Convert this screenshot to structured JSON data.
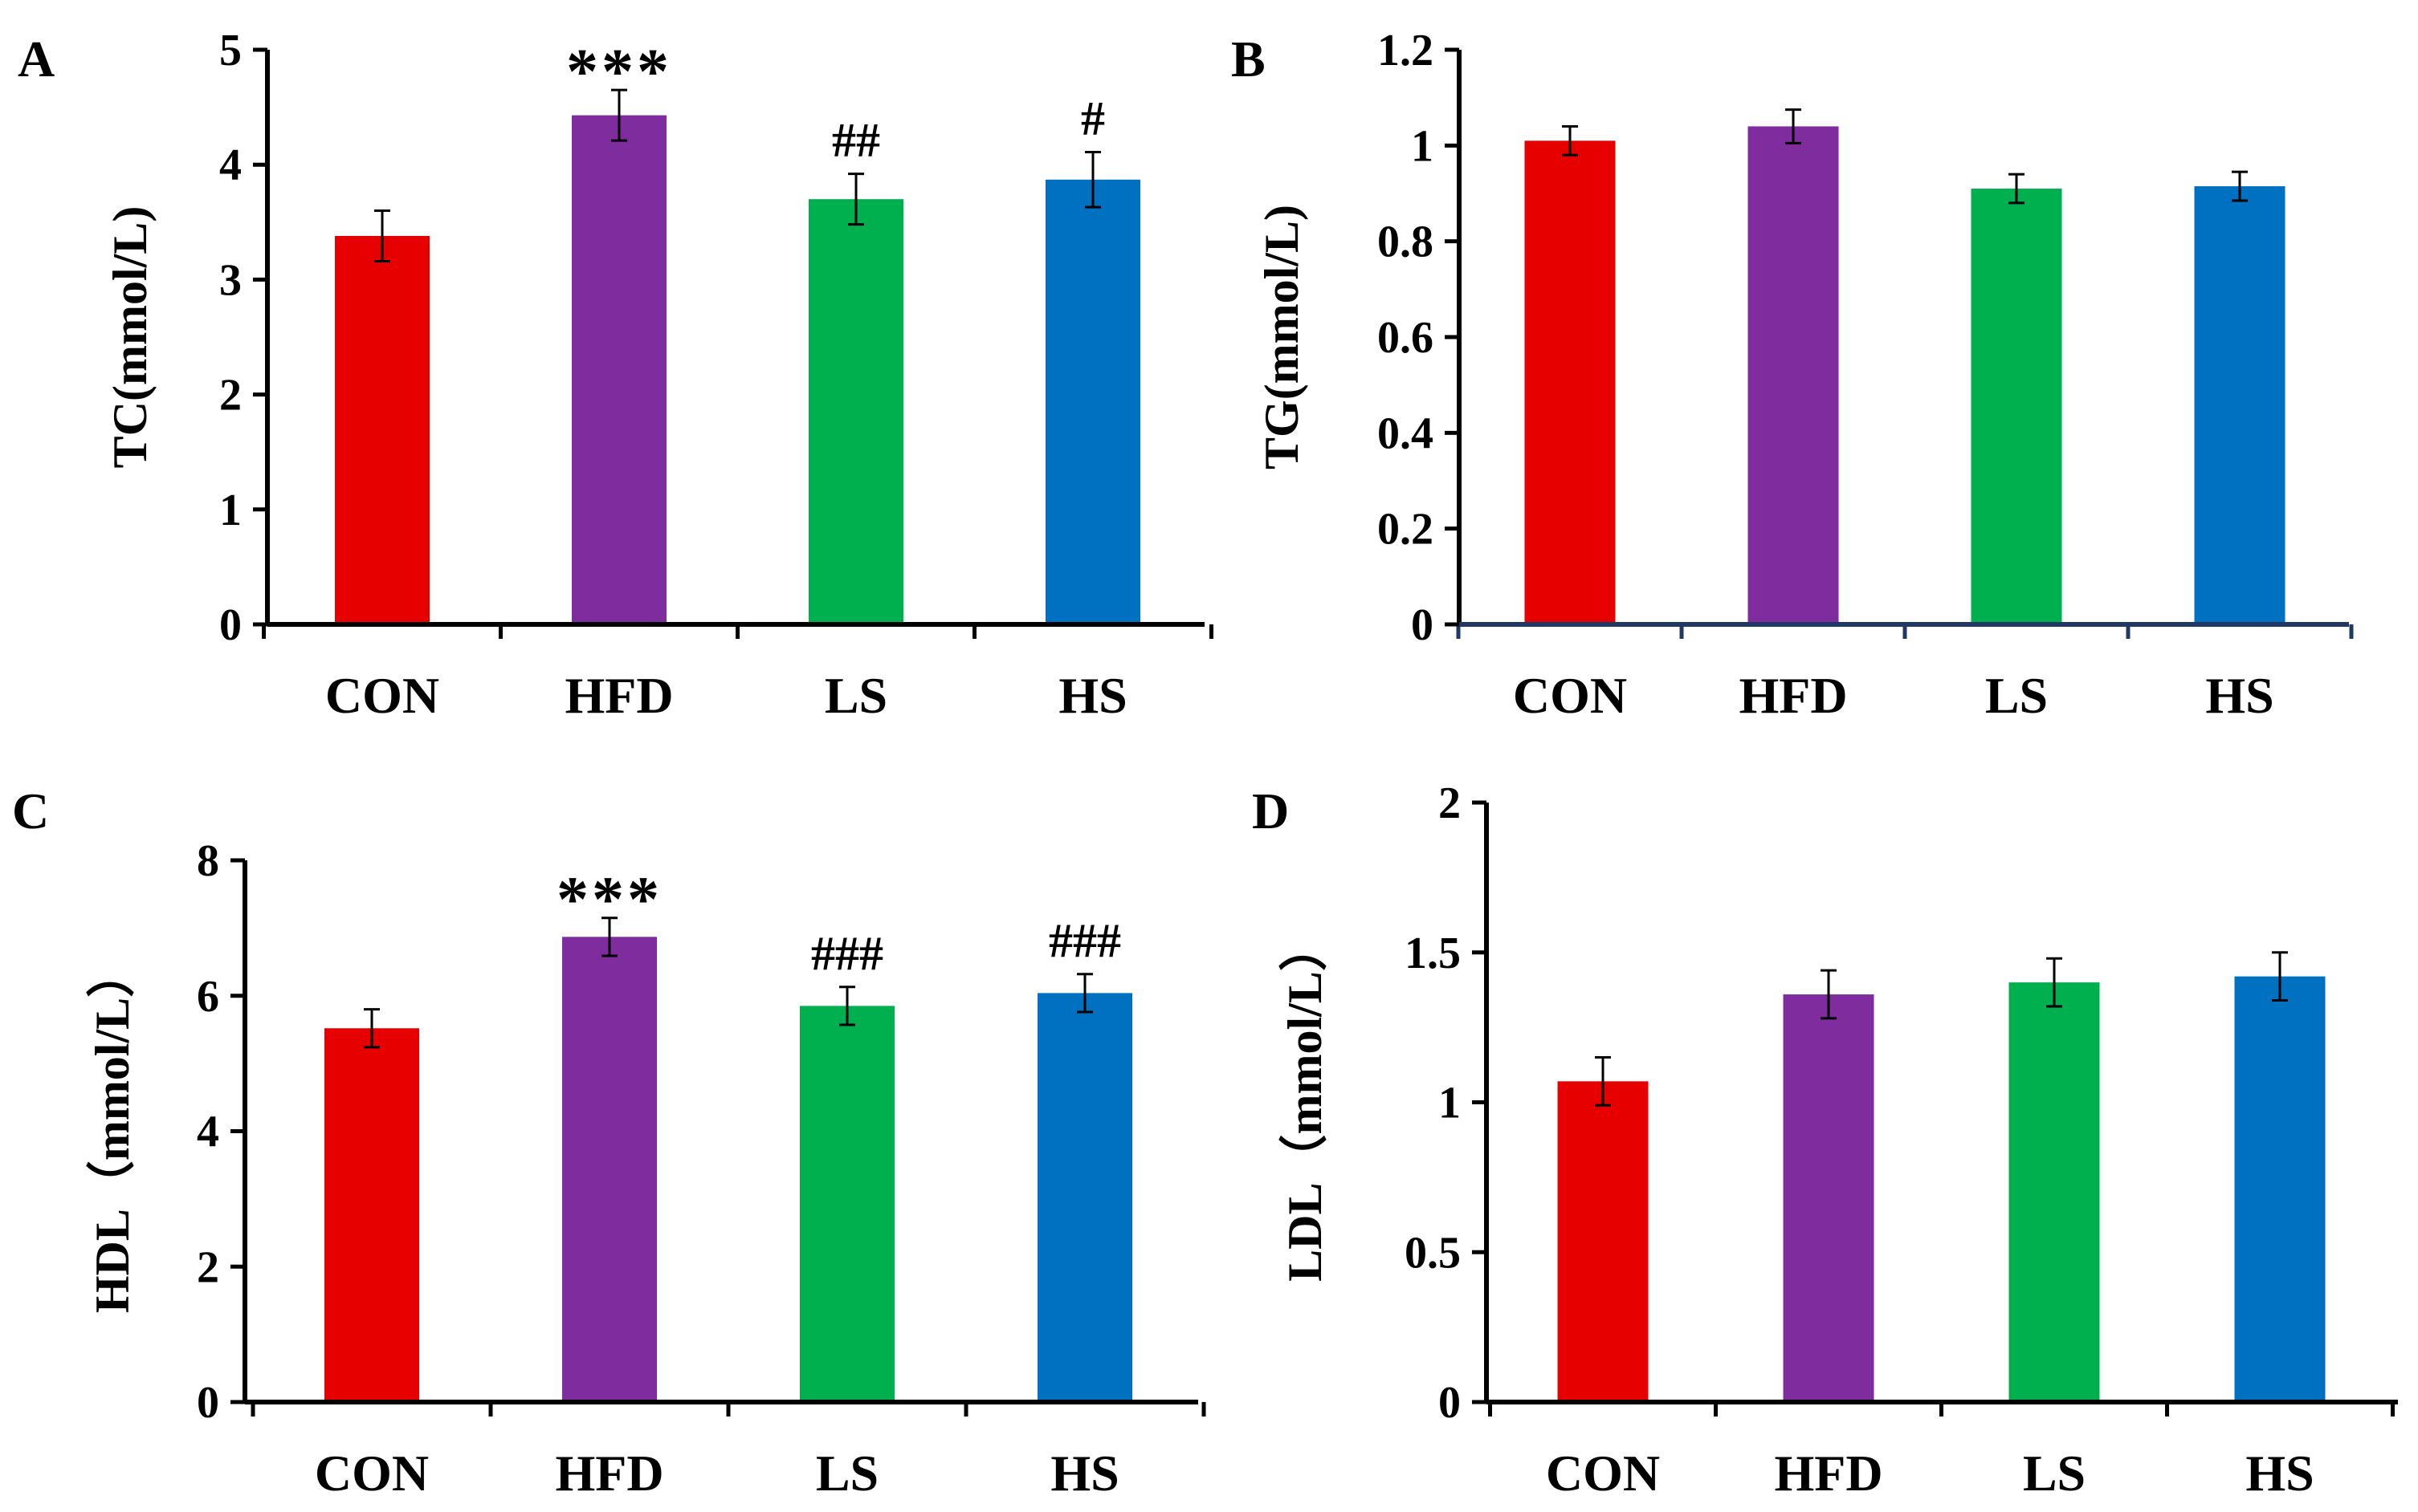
{
  "colors": {
    "CON": "#e60000",
    "HFD": "#7f2d9e",
    "LS": "#00b04f",
    "HS": "#0070c0",
    "axis_default": "#000000",
    "axis_B": "#1f3864"
  },
  "chart_data": [
    {
      "panel": "A",
      "type": "bar",
      "ylabel": "TC(mmol/L)",
      "categories": [
        "CON",
        "HFD",
        "LS",
        "HS"
      ],
      "values": [
        3.38,
        4.43,
        3.7,
        3.87
      ],
      "errors": [
        0.22,
        0.22,
        0.22,
        0.24
      ],
      "annotations": [
        "",
        "***",
        "##",
        "#"
      ],
      "ylim": [
        0,
        5
      ],
      "yticks": [
        0,
        1,
        2,
        3,
        4,
        5
      ],
      "ytick_labels": [
        "0",
        "1",
        "2",
        "3",
        "4",
        "5"
      ]
    },
    {
      "panel": "B",
      "type": "bar",
      "ylabel": "TG(mmol/L)",
      "categories": [
        "CON",
        "HFD",
        "LS",
        "HS"
      ],
      "values": [
        1.01,
        1.04,
        0.91,
        0.915
      ],
      "errors": [
        0.03,
        0.035,
        0.03,
        0.03
      ],
      "annotations": [
        "",
        "",
        "",
        ""
      ],
      "ylim": [
        0,
        1.2
      ],
      "yticks": [
        0,
        0.2,
        0.4,
        0.6,
        0.8,
        1,
        1.2
      ],
      "ytick_labels": [
        "0",
        "0.2",
        "0.4",
        "0.6",
        "0.8",
        "1",
        "1.2"
      ]
    },
    {
      "panel": "C",
      "type": "bar",
      "ylabel": "HDL（mmol/L）",
      "categories": [
        "CON",
        "HFD",
        "LS",
        "HS"
      ],
      "values": [
        5.52,
        6.87,
        5.85,
        6.04
      ],
      "errors": [
        0.28,
        0.28,
        0.28,
        0.28
      ],
      "annotations": [
        "",
        "***",
        "###",
        "###"
      ],
      "ylim": [
        0,
        8
      ],
      "yticks": [
        0,
        2,
        4,
        6,
        8
      ],
      "ytick_labels": [
        "0",
        "2",
        "4",
        "6",
        "8"
      ]
    },
    {
      "panel": "D",
      "type": "bar",
      "ylabel": "LDL（mmol/L）",
      "categories": [
        "CON",
        "HFD",
        "LS",
        "HS"
      ],
      "values": [
        1.07,
        1.36,
        1.4,
        1.42
      ],
      "errors": [
        0.08,
        0.08,
        0.08,
        0.08
      ],
      "annotations": [
        "",
        "",
        "",
        ""
      ],
      "ylim": [
        0,
        2
      ],
      "yticks": [
        0,
        0.5,
        1,
        1.5,
        2
      ],
      "ytick_labels": [
        "0",
        "0.5",
        "1",
        "1.5",
        "2"
      ]
    }
  ]
}
